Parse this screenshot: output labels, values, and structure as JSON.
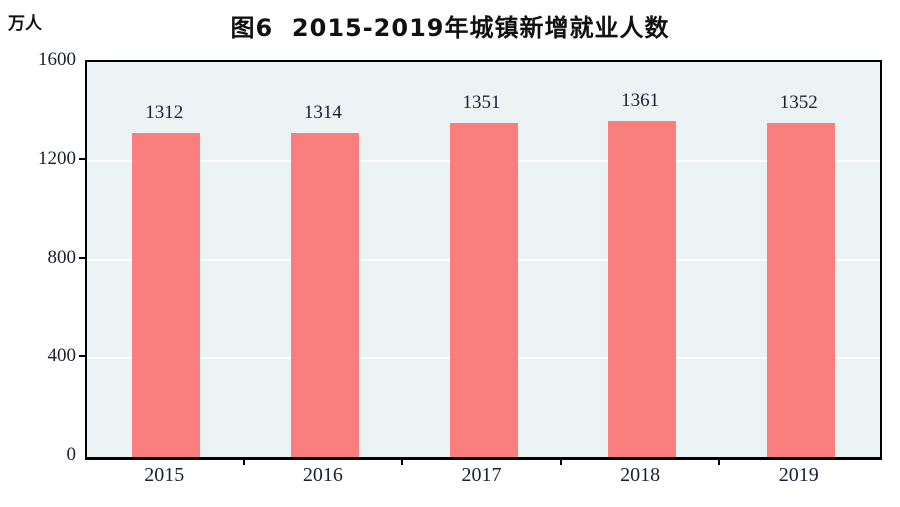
{
  "chart_data": {
    "type": "bar",
    "title": "图6  2015-2019年城镇新增就业人数",
    "unit_label": "万人",
    "categories": [
      "2015",
      "2016",
      "2017",
      "2018",
      "2019"
    ],
    "values": [
      1312,
      1314,
      1351,
      1361,
      1352
    ],
    "xlabel": "",
    "ylabel": "万人",
    "ylim": [
      0,
      1600
    ],
    "yticks": [
      0,
      400,
      800,
      1200,
      1600
    ],
    "gridlines_at": [
      400,
      800,
      1200
    ],
    "grid": true,
    "legend": "none",
    "colors": {
      "bar": "#FA7E7E",
      "plot_background": "#ECF3F5",
      "gridline": "#FFFFFF",
      "axis": "#000000",
      "label_text": "#1A2030",
      "title_text": "#111111"
    }
  }
}
